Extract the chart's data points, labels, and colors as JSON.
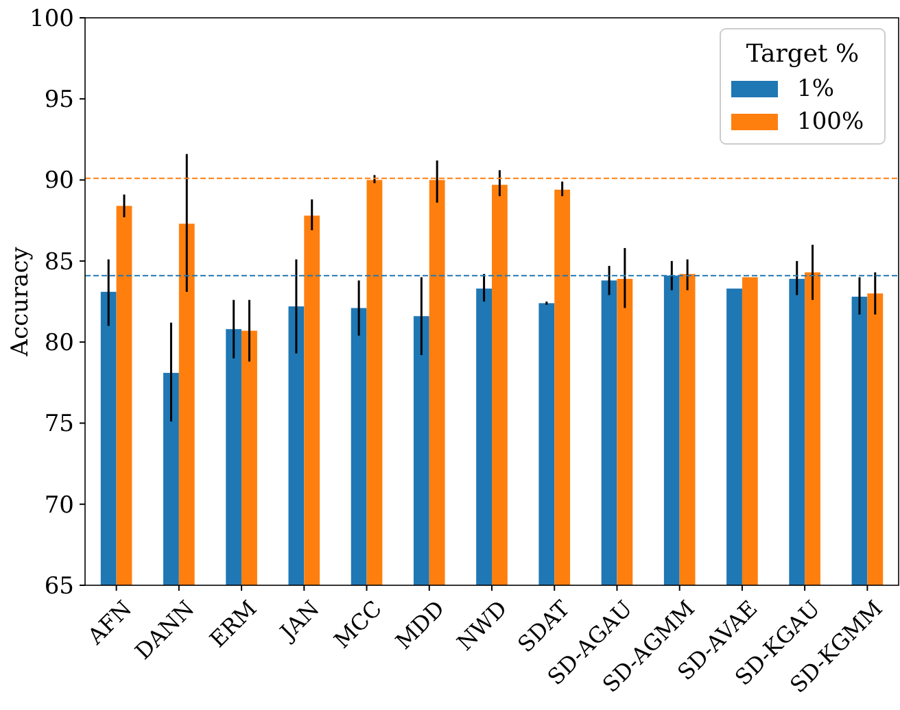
{
  "chart_data": {
    "type": "bar",
    "ylabel": "Accuracy",
    "legend_title": "Target %",
    "legend": "top right",
    "categories": [
      "AFN",
      "DANN",
      "ERM",
      "JAN",
      "MCC",
      "MDD",
      "NWD",
      "SDAT",
      "SD-AGAU",
      "SD-AGMM",
      "SD-AVAE",
      "SD-KGAU",
      "SD-KGMM"
    ],
    "series": [
      {
        "name": "1%",
        "color": "#1f77b4",
        "values": [
          83.1,
          78.1,
          80.8,
          82.2,
          82.1,
          81.6,
          83.3,
          82.4,
          83.8,
          84.1,
          83.3,
          83.9,
          82.8
        ],
        "errors": [
          [
            81.0,
            85.1
          ],
          [
            75.1,
            81.2
          ],
          [
            79.0,
            82.6
          ],
          [
            79.3,
            85.1
          ],
          [
            80.4,
            83.8
          ],
          [
            79.2,
            84.0
          ],
          [
            82.5,
            84.2
          ],
          [
            82.3,
            82.5
          ],
          [
            82.9,
            84.7
          ],
          [
            83.2,
            85.0
          ],
          null,
          [
            82.9,
            85.0
          ],
          [
            81.7,
            84.0
          ]
        ]
      },
      {
        "name": "100%",
        "color": "#ff7f0e",
        "values": [
          88.4,
          87.3,
          80.7,
          87.8,
          90.0,
          90.0,
          89.7,
          89.4,
          83.9,
          84.2,
          84.0,
          84.3,
          83.0
        ],
        "errors": [
          [
            87.7,
            89.1
          ],
          [
            83.1,
            91.6
          ],
          [
            78.8,
            82.6
          ],
          [
            86.9,
            88.8
          ],
          [
            89.8,
            90.3
          ],
          [
            88.6,
            91.2
          ],
          [
            89.0,
            90.6
          ],
          [
            89.0,
            89.9
          ],
          [
            82.1,
            85.8
          ],
          [
            83.2,
            85.1
          ],
          null,
          [
            82.6,
            86.0
          ],
          [
            81.7,
            84.3
          ]
        ]
      }
    ],
    "ylim": [
      65,
      100
    ],
    "yticks": [
      65,
      70,
      75,
      80,
      85,
      90,
      95,
      100
    ],
    "ref_lines": [
      {
        "axis": "y",
        "value": 84.1,
        "color": "#1f77b4",
        "line_style": "dashed"
      },
      {
        "axis": "y",
        "value": 90.1,
        "color": "#ff7f0e",
        "line_style": "dashed"
      }
    ]
  }
}
